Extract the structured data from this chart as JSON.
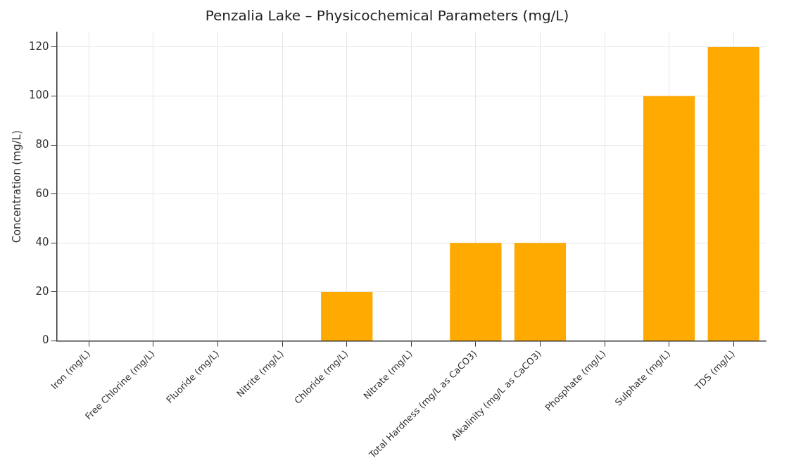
{
  "chart_data": {
    "type": "bar",
    "title": "Penzalia Lake – Physicochemical Parameters (mg/L)",
    "ylabel": "Concentration (mg/L)",
    "categories": [
      "Iron (mg/L)",
      "Free Chlorine (mg/L)",
      "Fluoride (mg/L)",
      "Nitrite (mg/L)",
      "Chloride (mg/L)",
      "Nitrate (mg/L)",
      "Total Hardness (mg/L as CaCO3)",
      "Alkalinity (mg/L as CaCO3)",
      "Phosphate (mg/L)",
      "Sulphate (mg/L)",
      "TDS (mg/L)"
    ],
    "values": [
      0,
      0,
      0,
      0,
      20,
      0,
      40,
      40,
      0,
      100,
      120
    ],
    "color": "#ffaa00",
    "ylim": [
      0,
      126
    ],
    "yticks": [
      0,
      20,
      40,
      60,
      80,
      100,
      120
    ],
    "grid": true,
    "legend": false
  }
}
